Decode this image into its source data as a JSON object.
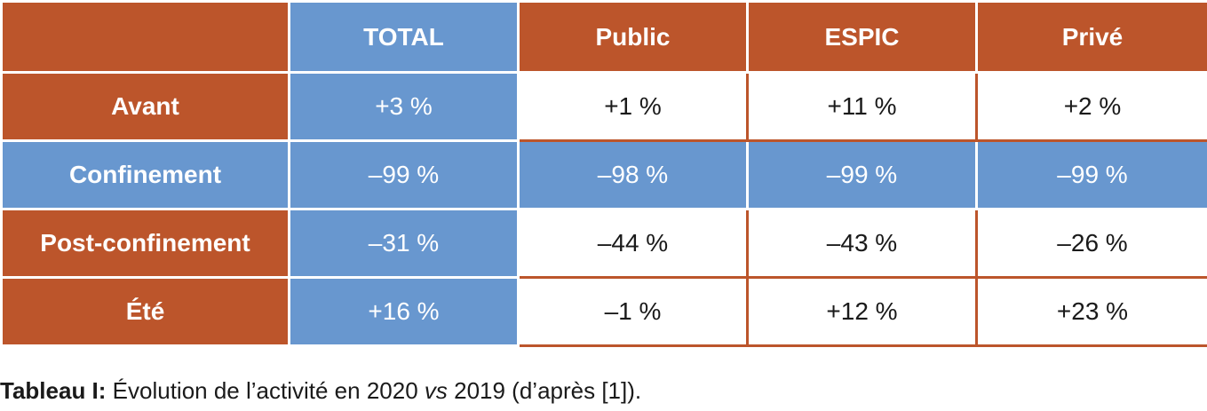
{
  "table": {
    "header": {
      "corner": "",
      "columns": [
        "TOTAL",
        "Public",
        "ESPIC",
        "Privé"
      ]
    },
    "rows": [
      {
        "label": "Avant",
        "values": [
          "+3 %",
          "+1 %",
          "+11 %",
          "+2 %"
        ]
      },
      {
        "label": "Confinement",
        "values": [
          "–99 %",
          "–98 %",
          "–99 %",
          "–99 %"
        ]
      },
      {
        "label": "Post-confinement",
        "values": [
          "–31 %",
          "–44 %",
          "–43 %",
          "–26 %"
        ]
      },
      {
        "label": "Été",
        "values": [
          "+16 %",
          "–1 %",
          "+12 %",
          "+23 %"
        ]
      }
    ]
  },
  "caption": {
    "label": "Tableau I:",
    "text_before": " Évolution de l’activité en 2020 ",
    "text_italic": "vs",
    "text_after": " 2019 (d’après [1])."
  },
  "colors": {
    "orange": "#bc552b",
    "blue": "#6897cf"
  }
}
